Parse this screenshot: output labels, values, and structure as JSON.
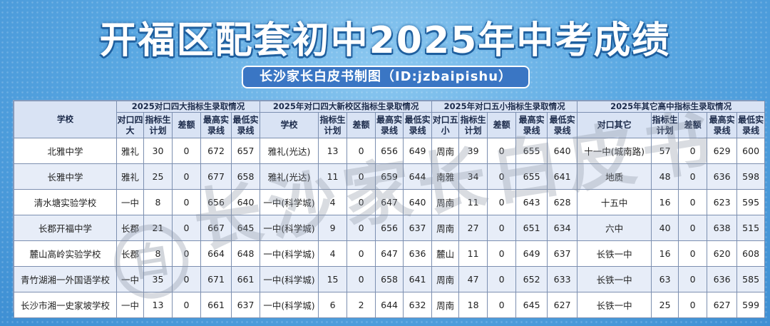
{
  "title": "开福区配套初中2025年中考成绩",
  "subtitle": "长沙家长白皮书制图（ID:jzbaipishu）",
  "watermark": {
    "text": "长沙家长白皮书",
    "badge": "白"
  },
  "table": {
    "group_headers": {
      "school": "学校",
      "g1": "2025对口四大指标生录取情况",
      "g2": "2025年对口四大新校区指标生录取情况",
      "g3": "2025年对口五小指标生录取情况",
      "g4": "2025年其它高中指标生录取情况"
    },
    "sub_headers": [
      "对口四大",
      "指标生计划",
      "差额",
      "最高实录线",
      "最低实录线",
      "学校",
      "指标生计划",
      "差额",
      "最高实录线",
      "最低实录线",
      "对口五小",
      "指标生计划",
      "差额",
      "最高实录线",
      "最低实录线",
      "对口其它",
      "指标生计划",
      "差额",
      "最高实录线",
      "最低实录线"
    ],
    "rows": [
      [
        "北雅中学",
        "雅礼",
        "30",
        "0",
        "672",
        "657",
        "雅礼(光达)",
        "13",
        "0",
        "656",
        "649",
        "周南",
        "39",
        "0",
        "655",
        "640",
        "十一中(城南路)",
        "57",
        "0",
        "629",
        "600"
      ],
      [
        "长雅中学",
        "雅礼",
        "25",
        "0",
        "677",
        "658",
        "雅礼(光达)",
        "11",
        "0",
        "659",
        "644",
        "南雅",
        "34",
        "0",
        "655",
        "641",
        "地质",
        "48",
        "0",
        "636",
        "598"
      ],
      [
        "清水塘实验学校",
        "一中",
        "8",
        "0",
        "656",
        "640",
        "一中(科学城)",
        "4",
        "0",
        "647",
        "640",
        "周南",
        "11",
        "0",
        "643",
        "628",
        "十五中",
        "16",
        "0",
        "623",
        "595"
      ],
      [
        "长郡开福中学",
        "长郡",
        "21",
        "0",
        "667",
        "645",
        "一中(科学城)",
        "9",
        "0",
        "656",
        "637",
        "周南",
        "27",
        "0",
        "651",
        "634",
        "六中",
        "40",
        "0",
        "638",
        "515"
      ],
      [
        "麓山高岭实验学校",
        "长郡",
        "8",
        "0",
        "664",
        "648",
        "一中(科学城)",
        "4",
        "0",
        "647",
        "636",
        "麓山",
        "11",
        "0",
        "649",
        "637",
        "长铁一中",
        "16",
        "0",
        "620",
        "608"
      ],
      [
        "青竹湖湘一外国语学校",
        "一中",
        "35",
        "0",
        "671",
        "661",
        "一中(科学城)",
        "15",
        "0",
        "658",
        "641",
        "周南",
        "47",
        "0",
        "652",
        "633",
        "长铁一中",
        "63",
        "0",
        "636",
        "585"
      ],
      [
        "长沙市湘一史家坡学校",
        "一中",
        "13",
        "0",
        "661",
        "637",
        "一中(科学城)",
        "6",
        "2",
        "644",
        "632",
        "周南",
        "18",
        "0",
        "645",
        "627",
        "长铁一中",
        "25",
        "0",
        "627",
        "599"
      ]
    ]
  }
}
